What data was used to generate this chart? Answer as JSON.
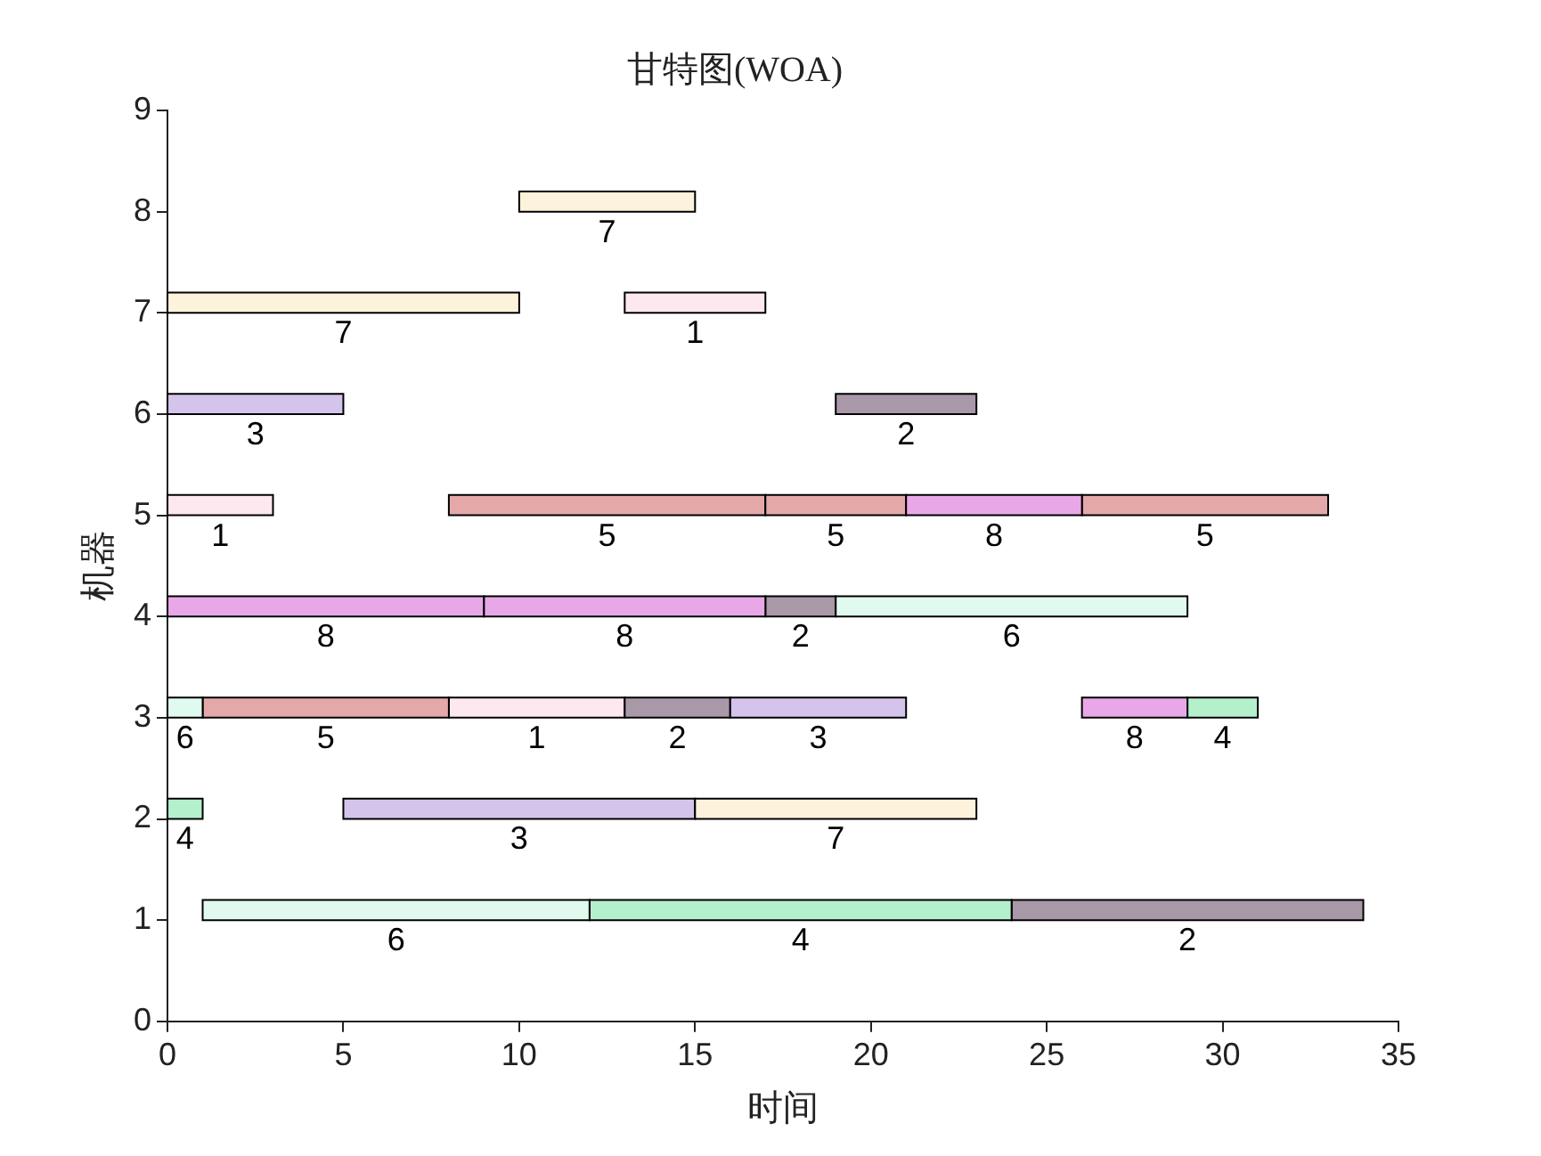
{
  "chart_data": {
    "type": "bar",
    "orientation": "horizontal",
    "title": "甘特图(WOA)",
    "xlabel": "时间",
    "ylabel": "机器",
    "xlim": [
      0,
      35
    ],
    "xticks": [
      0,
      5,
      10,
      15,
      20,
      25,
      30,
      35
    ],
    "ylim": [
      0,
      9
    ],
    "yticks": [
      0,
      1,
      2,
      3,
      4,
      5,
      6,
      7,
      8,
      9
    ],
    "grid": false,
    "legend": false,
    "series": [
      {
        "name": "1",
        "color": "#fce8ee",
        "x": [
          3,
          5,
          7
        ],
        "base": [
          8,
          0,
          13
        ],
        "values": [
          5,
          3,
          4
        ]
      },
      {
        "name": "2",
        "color": "#a898a8",
        "x": [
          1,
          3,
          4,
          6
        ],
        "base": [
          24,
          13,
          17,
          19
        ],
        "values": [
          10,
          3,
          2,
          4
        ]
      },
      {
        "name": "3",
        "color": "#d4c4ec",
        "x": [
          2,
          3,
          6
        ],
        "base": [
          5,
          16,
          0
        ],
        "values": [
          10,
          5,
          5
        ]
      },
      {
        "name": "4",
        "color": "#b4f0cc",
        "x": [
          1,
          2,
          3
        ],
        "base": [
          12,
          0,
          29
        ],
        "values": [
          12,
          1,
          2
        ]
      },
      {
        "name": "5",
        "color": "#e4a8a8",
        "x": [
          3,
          5
        ],
        "base": [
          1,
          8
        ],
        "values": [
          7,
          9
        ]
      },
      {
        "name": "5",
        "color": "#e4a8a8",
        "x": [
          5
        ],
        "base": [
          17
        ],
        "values": [
          4
        ]
      },
      {
        "name": "5",
        "color": "#e4a8a8",
        "x": [
          5
        ],
        "base": [
          26
        ],
        "values": [
          7
        ]
      },
      {
        "name": "6",
        "color": "#e0faf0",
        "x": [
          1,
          3,
          4
        ],
        "base": [
          1,
          0,
          19
        ],
        "values": [
          11,
          1,
          10
        ]
      },
      {
        "name": "7",
        "color": "#fdf2dc",
        "x": [
          2,
          7,
          8
        ],
        "base": [
          15,
          0,
          10
        ],
        "values": [
          8,
          10,
          5
        ]
      },
      {
        "name": "8",
        "color": "#e8a8e8",
        "x": [
          3,
          4,
          5
        ],
        "base": [
          26,
          0,
          21
        ],
        "values": [
          3,
          9,
          5
        ]
      },
      {
        "name": "8",
        "color": "#e8a8e8",
        "x": [
          4
        ],
        "base": [
          9
        ],
        "values": [
          8
        ]
      }
    ]
  }
}
